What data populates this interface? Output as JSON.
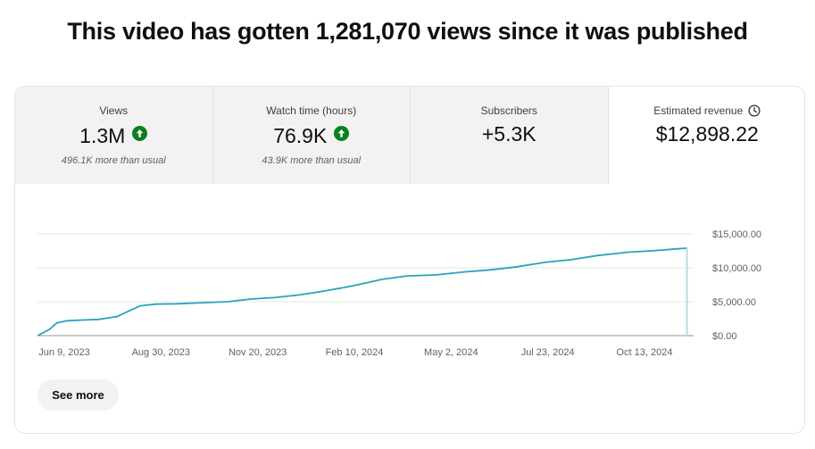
{
  "headline": "This video has gotten 1,281,070 views since it was published",
  "tabs": [
    {
      "label": "Views",
      "value": "1.3M",
      "trend": "up",
      "sub": "496.1K more than usual"
    },
    {
      "label": "Watch time (hours)",
      "value": "76.9K",
      "trend": "up",
      "sub": "43.9K more than usual"
    },
    {
      "label": "Subscribers",
      "value": "+5.3K"
    },
    {
      "label": "Estimated revenue",
      "value": "$12,898.22",
      "icon": "clock-icon"
    }
  ],
  "colors": {
    "line": "#2ba2bd",
    "trend_up": "#0b7f1e",
    "grid": "#e5e5e5",
    "axis": "#909090"
  },
  "chart_data": {
    "type": "line",
    "x_ticks": [
      "Jun 9, 2023",
      "Aug 30, 2023",
      "Nov 20, 2023",
      "Feb 10, 2024",
      "May 2, 2024",
      "Jul 23, 2024",
      "Oct 13, 2024"
    ],
    "y_ticks": [
      "$15,000.00",
      "$10,000.00",
      "$5,000.00",
      "$0.00"
    ],
    "ylim": [
      0,
      15000
    ],
    "xlim": [
      "2023-06-09",
      "2024-10-21"
    ],
    "grid": true,
    "series": [
      {
        "x": [
          "2023-06-09",
          "2023-06-18",
          "2023-06-24",
          "2023-07-02",
          "2023-07-14",
          "2023-07-26",
          "2023-08-09",
          "2023-08-18",
          "2023-08-27",
          "2023-09-08",
          "2023-09-24",
          "2023-10-14",
          "2023-11-02",
          "2023-11-20",
          "2023-12-08",
          "2023-12-27",
          "2024-01-13",
          "2024-01-31",
          "2024-02-10",
          "2024-02-29",
          "2024-03-19",
          "2024-04-10",
          "2024-05-02",
          "2024-05-22",
          "2024-06-10",
          "2024-07-03",
          "2024-07-23",
          "2024-08-12",
          "2024-09-05",
          "2024-09-23",
          "2024-10-13",
          "2024-10-20"
        ],
        "y": [
          0,
          900,
          1900,
          2200,
          2300,
          2400,
          2800,
          3600,
          4400,
          4650,
          4700,
          4850,
          5000,
          5400,
          5600,
          6000,
          6500,
          7100,
          7500,
          8300,
          8800,
          8950,
          9400,
          9700,
          10100,
          10800,
          11200,
          11800,
          12300,
          12500,
          12800,
          12900
        ]
      }
    ]
  },
  "see_more_label": "See more"
}
